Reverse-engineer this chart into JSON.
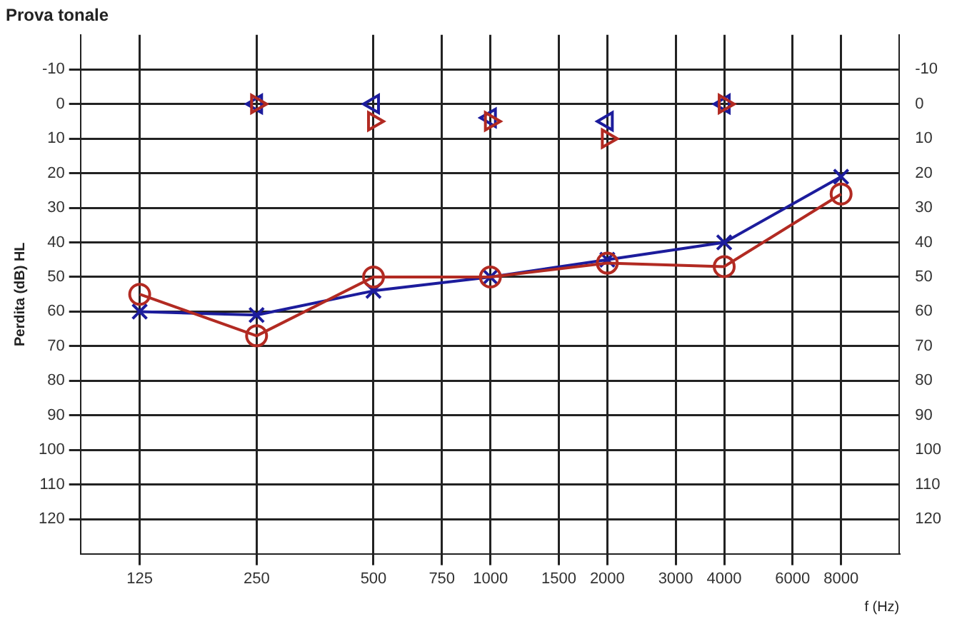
{
  "chart_data": {
    "type": "line",
    "title": "Prova tonale",
    "xlabel": "f (Hz)",
    "ylabel": "Perdita (dB) HL",
    "log": "x",
    "xlim": [
      88,
      11300
    ],
    "xticks": [
      125,
      250,
      500,
      750,
      1000,
      1500,
      2000,
      3000,
      4000,
      6000,
      8000
    ],
    "ylim": [
      130,
      -20
    ],
    "yticks": [
      -10,
      0,
      10,
      20,
      30,
      40,
      50,
      60,
      70,
      80,
      90,
      100,
      110,
      120
    ],
    "y2lim": [
      130,
      -20
    ],
    "y2ticks": [
      -10,
      0,
      10,
      20,
      30,
      40,
      50,
      60,
      70,
      80,
      90,
      100,
      110,
      120
    ],
    "grid": true,
    "legend": false,
    "line_style": "solid",
    "x": [
      125,
      250,
      500,
      1000,
      2000,
      4000,
      8000
    ],
    "series": [
      {
        "color": "#b22a22",
        "marker": "circle",
        "values": [
          55,
          67,
          50,
          50,
          46,
          47,
          26
        ]
      },
      {
        "color": "#1c1c9c",
        "marker": "cross",
        "values": [
          60,
          61,
          54,
          50,
          45,
          40,
          21
        ]
      },
      {
        "type": "scatter",
        "color": "#b22a22",
        "marker": "triangle",
        "values": [
          null,
          0,
          5,
          5,
          10,
          0,
          null
        ]
      },
      {
        "type": "scatter",
        "color": "#1c1c9c",
        "marker": "triangle",
        "values": [
          null,
          0,
          0,
          4,
          5,
          0,
          null
        ]
      }
    ]
  }
}
